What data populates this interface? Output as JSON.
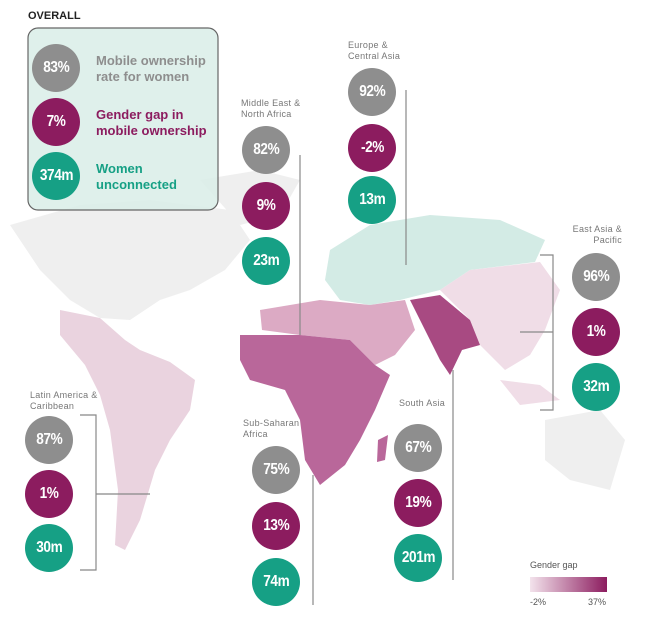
{
  "overall": {
    "title": "OVERALL",
    "items": [
      {
        "value": "83%",
        "label": "Mobile ownership rate for women"
      },
      {
        "value": "7%",
        "label": "Gender gap in mobile ownership"
      },
      {
        "value": "374m",
        "label": "Women unconnected"
      }
    ]
  },
  "regions": [
    {
      "name": "Europe & Central Asia",
      "ownership": "92%",
      "gap": "-2%",
      "unconnected": "13m"
    },
    {
      "name": "Middle East & North Africa",
      "ownership": "82%",
      "gap": "9%",
      "unconnected": "23m"
    },
    {
      "name": "East Asia & Pacific",
      "ownership": "96%",
      "gap": "1%",
      "unconnected": "32m"
    },
    {
      "name": "Latin America & Caribbean",
      "ownership": "87%",
      "gap": "1%",
      "unconnected": "30m"
    },
    {
      "name": "Sub-Saharan Africa",
      "ownership": "75%",
      "gap": "13%",
      "unconnected": "74m"
    },
    {
      "name": "South Asia",
      "ownership": "67%",
      "gap": "19%",
      "unconnected": "201m"
    }
  ],
  "legend": {
    "title": "Gender gap",
    "min": "-2%",
    "max": "37%"
  }
}
